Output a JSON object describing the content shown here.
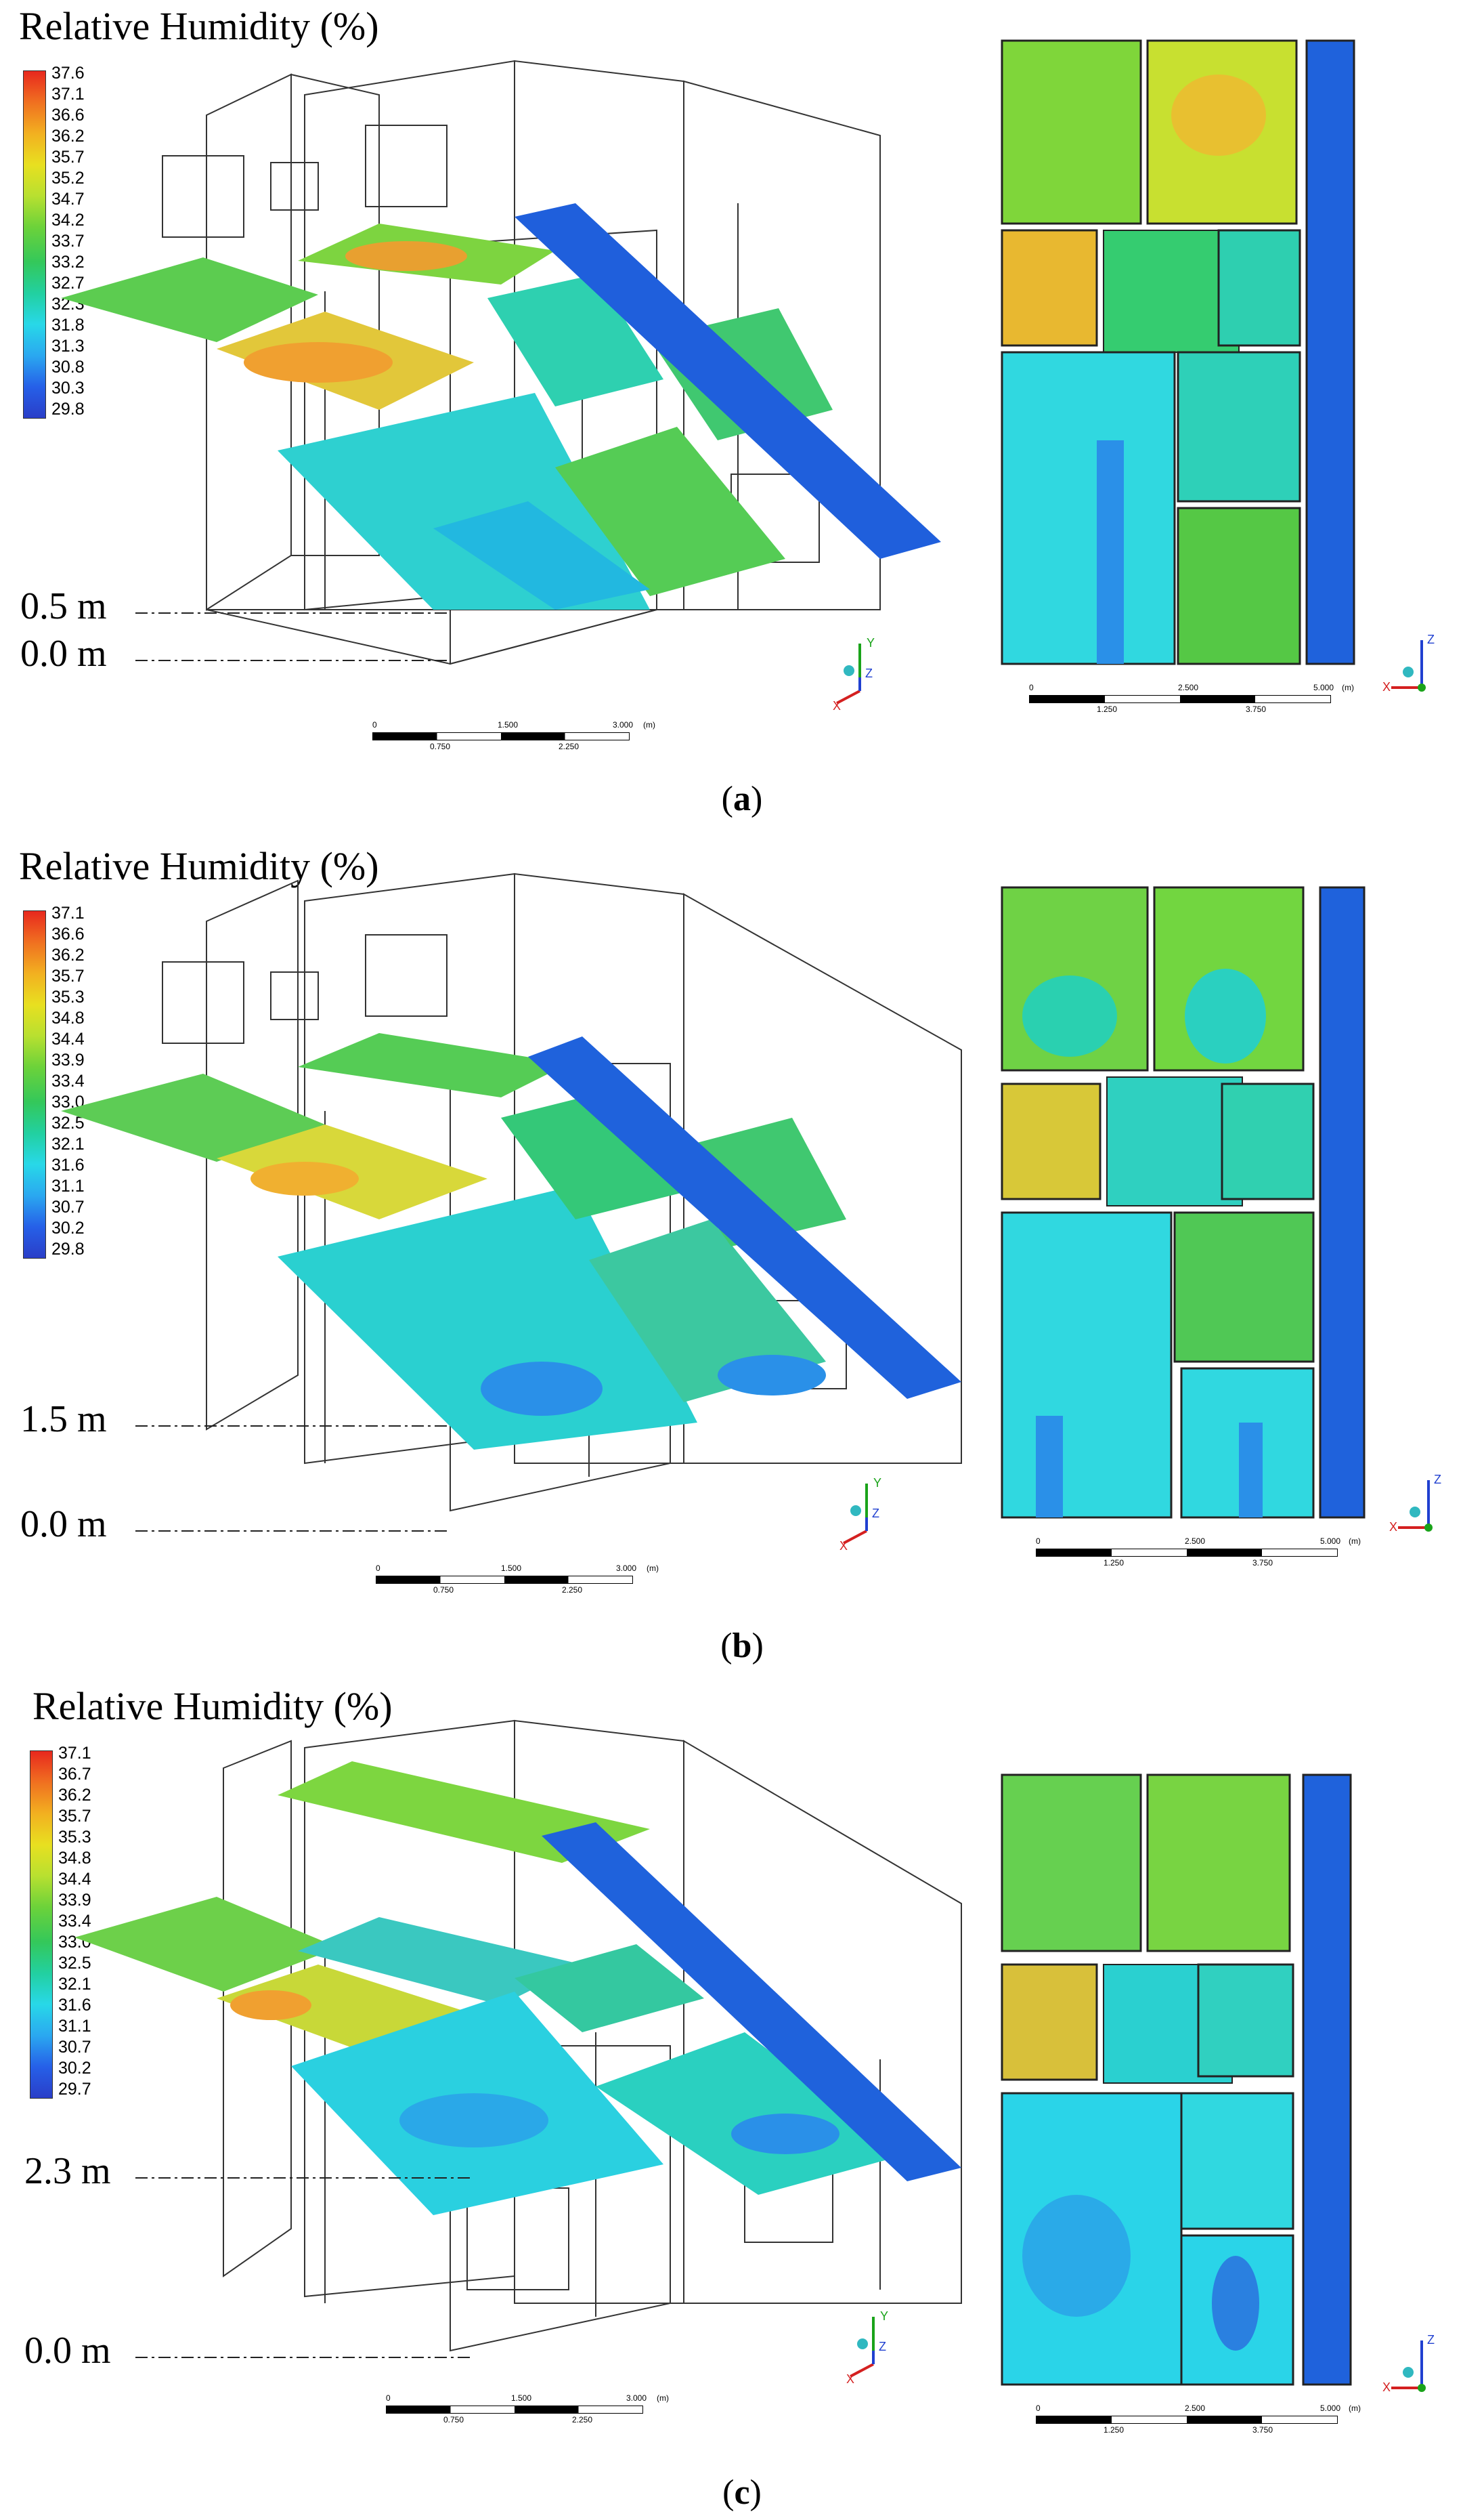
{
  "panels": [
    {
      "id": "a",
      "title": "Relative Humidity (%)",
      "legend_ticks": [
        "37.6",
        "37.1",
        "36.6",
        "36.2",
        "35.7",
        "35.2",
        "34.7",
        "34.2",
        "33.7",
        "33.2",
        "32.7",
        "32.3",
        "31.8",
        "31.3",
        "30.8",
        "30.3",
        "29.8"
      ],
      "height_high": "0.5 m",
      "height_low": "0.0 m",
      "scale_iso": {
        "top": [
          "0",
          "1.500",
          "3.000"
        ],
        "unit": "(m)",
        "bottom": [
          "0.750",
          "2.250"
        ]
      },
      "scale_plan": {
        "top": [
          "0",
          "2.500",
          "5.000"
        ],
        "unit": "(m)",
        "bottom": [
          "1.250",
          "3.750"
        ]
      },
      "axes_iso": [
        "Y",
        "Z",
        "X"
      ],
      "axes_plan": [
        "Z",
        "X"
      ],
      "caption_letter": "a"
    },
    {
      "id": "b",
      "title": "Relative Humidity (%)",
      "legend_ticks": [
        "37.1",
        "36.6",
        "36.2",
        "35.7",
        "35.3",
        "34.8",
        "34.4",
        "33.9",
        "33.4",
        "33.0",
        "32.5",
        "32.1",
        "31.6",
        "31.1",
        "30.7",
        "30.2",
        "29.8"
      ],
      "height_high": "1.5 m",
      "height_low": "0.0 m",
      "scale_iso": {
        "top": [
          "0",
          "1.500",
          "3.000"
        ],
        "unit": "(m)",
        "bottom": [
          "0.750",
          "2.250"
        ]
      },
      "scale_plan": {
        "top": [
          "0",
          "2.500",
          "5.000"
        ],
        "unit": "(m)",
        "bottom": [
          "1.250",
          "3.750"
        ]
      },
      "axes_iso": [
        "Y",
        "Z",
        "X"
      ],
      "axes_plan": [
        "Z",
        "X"
      ],
      "caption_letter": "b"
    },
    {
      "id": "c",
      "title": "Relative Humidity (%)",
      "legend_ticks": [
        "37.1",
        "36.7",
        "36.2",
        "35.7",
        "35.3",
        "34.8",
        "34.4",
        "33.9",
        "33.4",
        "33.0",
        "32.5",
        "32.1",
        "31.6",
        "31.1",
        "30.7",
        "30.2",
        "29.7"
      ],
      "height_high": "2.3 m",
      "height_low": "0.0 m",
      "scale_iso": {
        "top": [
          "0",
          "1.500",
          "3.000"
        ],
        "unit": "(m)",
        "bottom": [
          "0.750",
          "2.250"
        ]
      },
      "scale_plan": {
        "top": [
          "0",
          "2.500",
          "5.000"
        ],
        "unit": "(m)",
        "bottom": [
          "1.250",
          "3.750"
        ]
      },
      "axes_iso": [
        "Y",
        "Z",
        "X"
      ],
      "axes_plan": [
        "Z",
        "X"
      ],
      "caption_letter": "c"
    }
  ],
  "colors": {
    "max": "#e8281e",
    "mid": "#34c85a",
    "min": "#2a3ec8",
    "corridor": "#1e6ee0"
  }
}
